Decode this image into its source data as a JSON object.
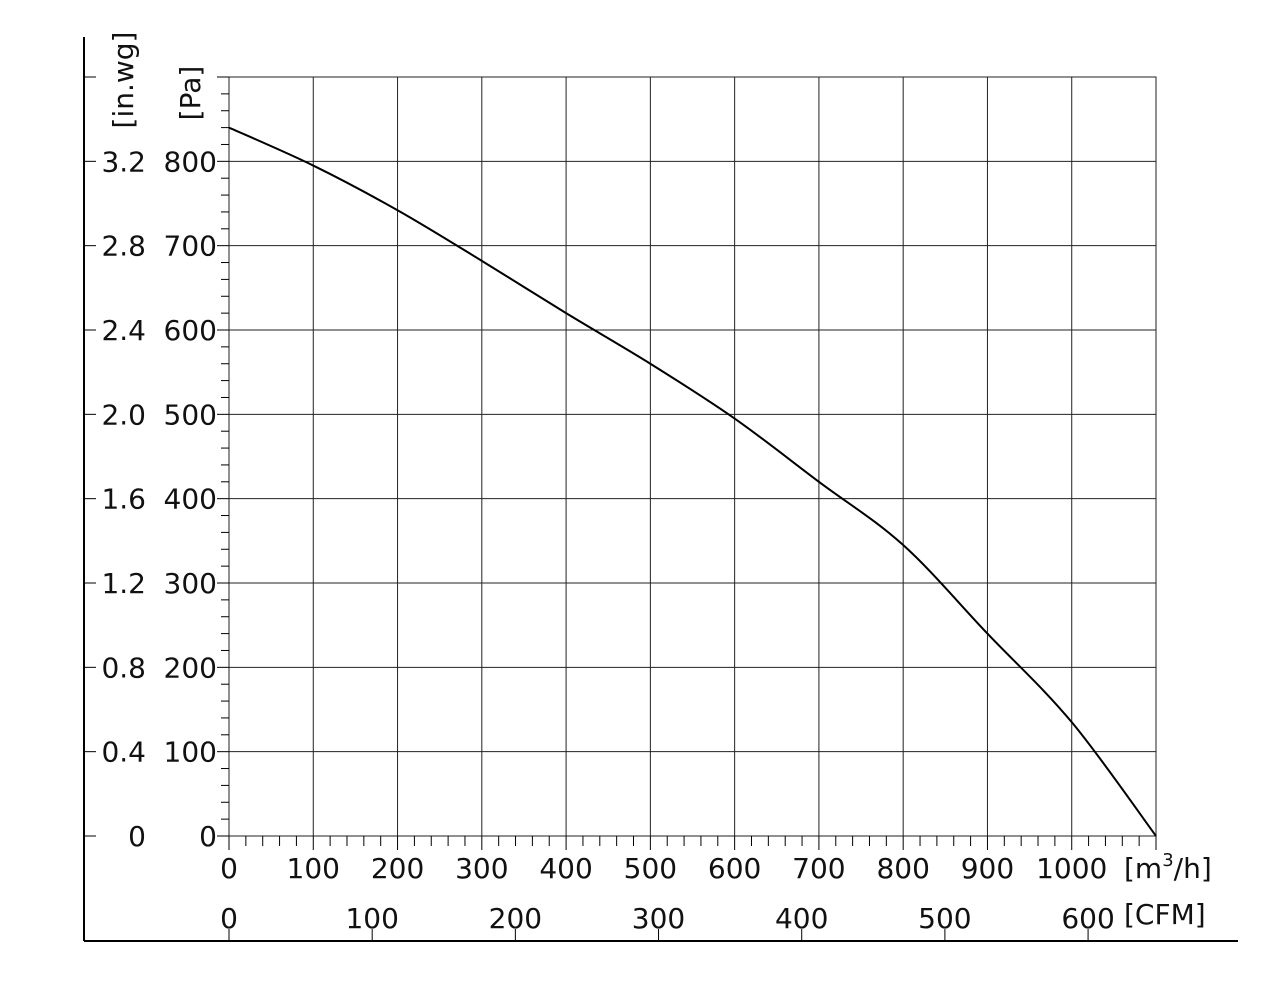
{
  "chart_data": {
    "type": "line",
    "x_axis_primary": {
      "label": "[m³/h]",
      "label_main": "[m",
      "label_sup": "3",
      "label_tail": "/h]",
      "ticks": [
        "0",
        "100",
        "200",
        "300",
        "400",
        "500",
        "600",
        "700",
        "800",
        "900",
        "1000"
      ],
      "range": [
        0,
        1100
      ]
    },
    "x_axis_secondary": {
      "label": "[CFM]",
      "ticks": [
        "0",
        "100",
        "200",
        "300",
        "400",
        "500",
        "600"
      ],
      "values": [
        0,
        100,
        200,
        300,
        400,
        500,
        600
      ],
      "m3h_per_cfm": 1.699
    },
    "y_axis_primary": {
      "label": "[Pa]",
      "ticks": [
        "0",
        "100",
        "200",
        "300",
        "400",
        "500",
        "600",
        "700",
        "800"
      ],
      "range": [
        0,
        900
      ]
    },
    "y_axis_secondary": {
      "label": "[in.wg]",
      "ticks": [
        "0",
        "0.4",
        "0.8",
        "1.2",
        "1.6",
        "2.0",
        "2.4",
        "2.8",
        "3.2"
      ]
    },
    "grid": true,
    "series": [
      {
        "x": [
          0,
          100,
          200,
          300,
          400,
          500,
          600,
          700,
          800,
          900,
          1000,
          1100
        ],
        "y": [
          840,
          795,
          742,
          682,
          620,
          560,
          495,
          420,
          345,
          240,
          135,
          0
        ]
      }
    ]
  }
}
